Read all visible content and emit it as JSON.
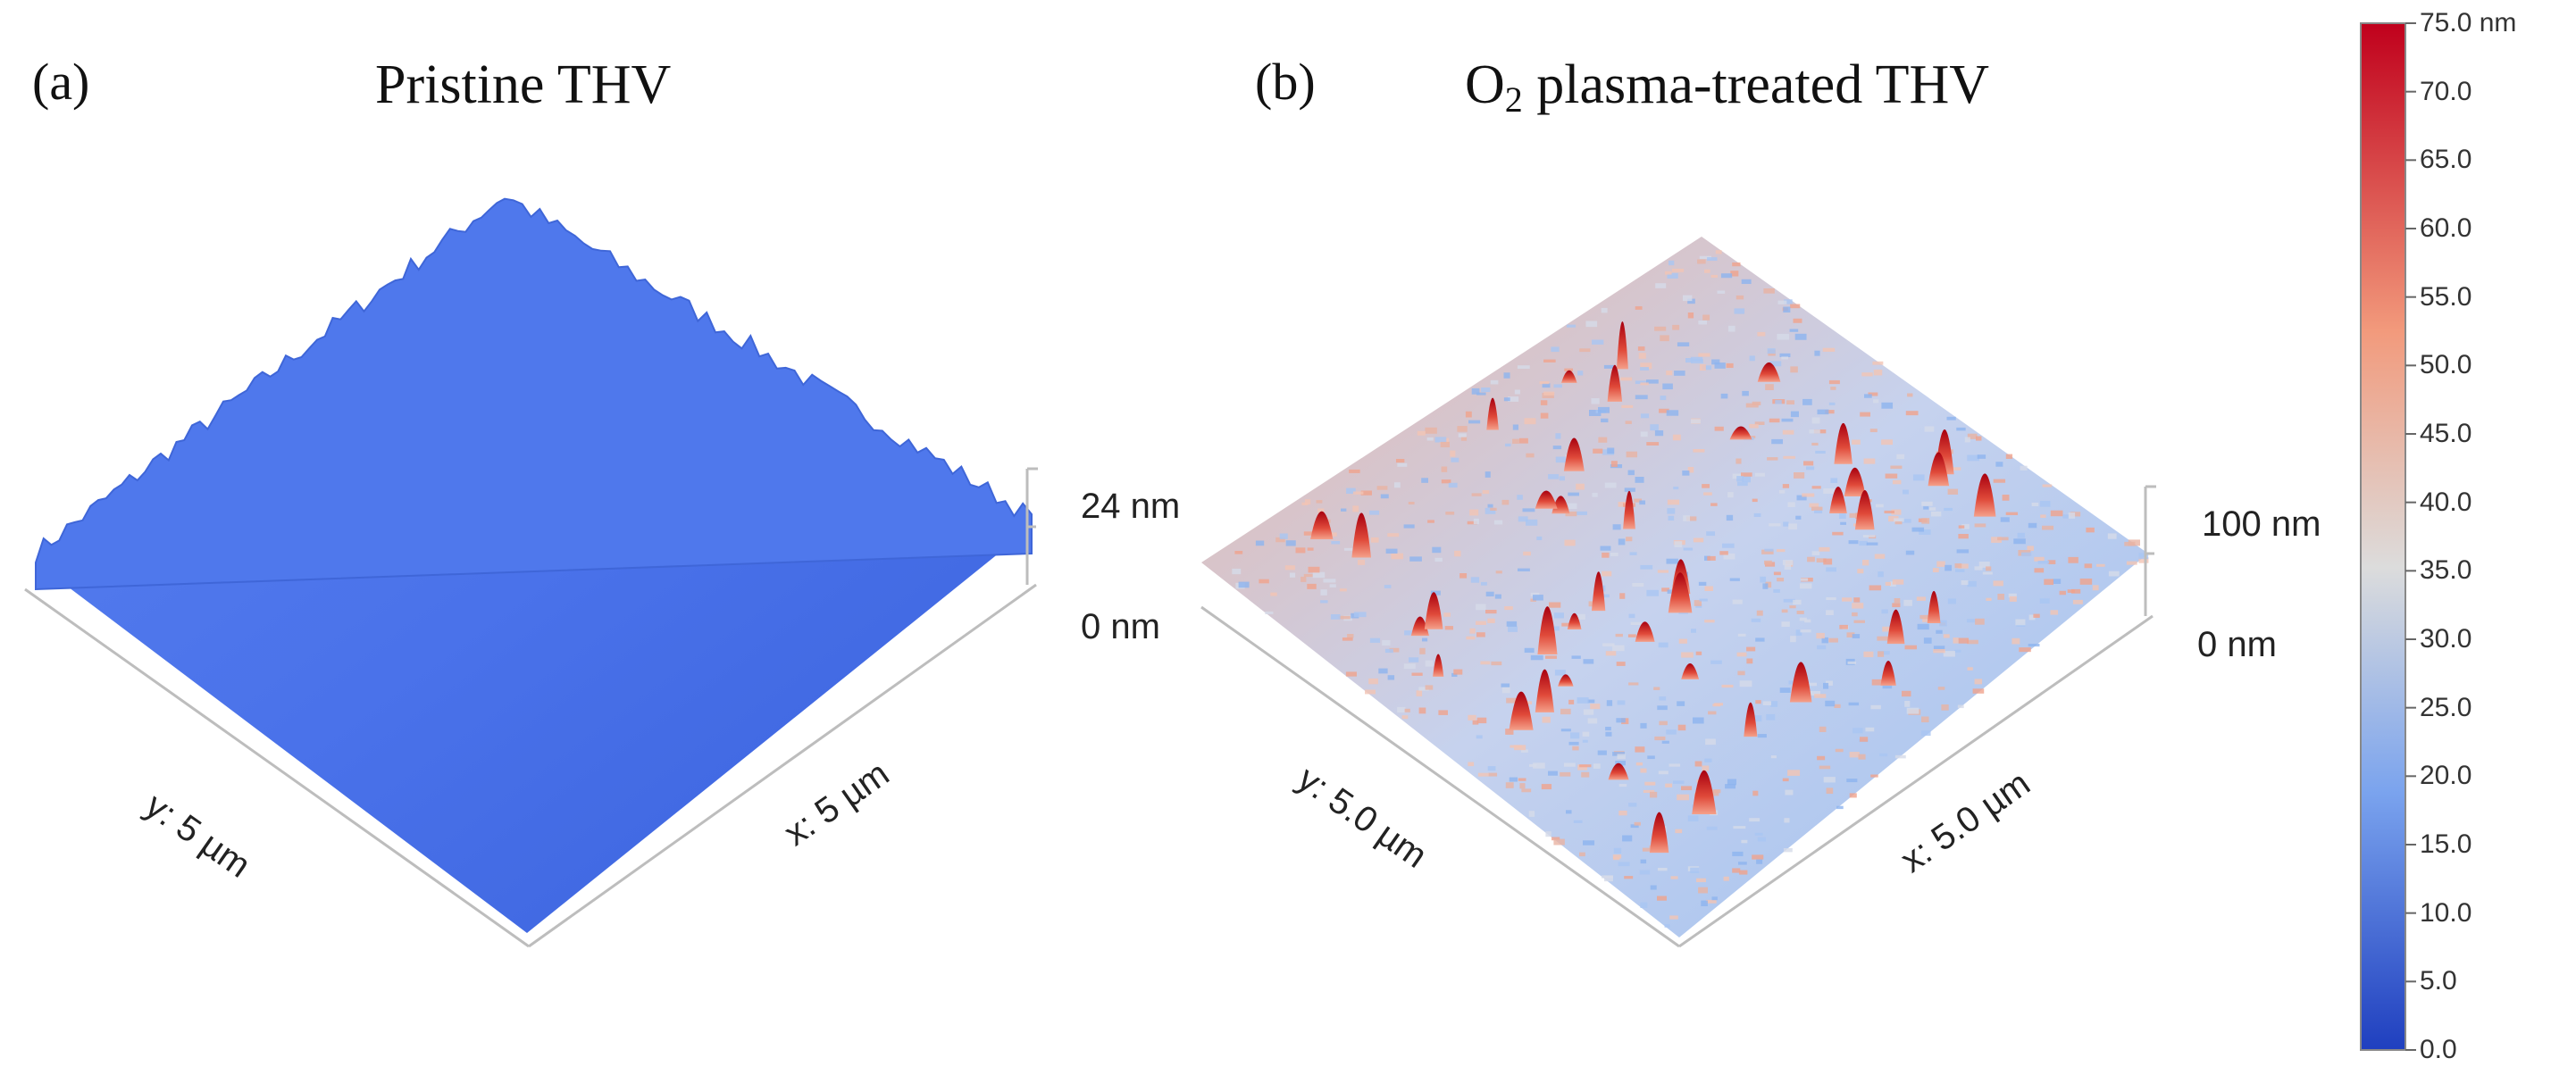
{
  "panel_a": {
    "letter": "(a)",
    "title": "Pristine THV",
    "x_axis": "x: 5 µm",
    "y_axis": "y: 5 µm",
    "z_top": "24 nm",
    "z_bottom": "0 nm"
  },
  "panel_b": {
    "letter": "(b)",
    "title_prefix": "O",
    "title_sub": "2",
    "title_suffix": " plasma-treated THV",
    "x_axis": "x: 5.0 µm",
    "y_axis": "y: 5.0 µm",
    "z_top": "100 nm",
    "z_bottom": "0 nm"
  },
  "colorbar": {
    "ticks": [
      "75.0 nm",
      "70.0",
      "65.0",
      "60.0",
      "55.0",
      "50.0",
      "45.0",
      "40.0",
      "35.0",
      "30.0",
      "25.0",
      "20.0",
      "15.0",
      "10.0",
      "5.0",
      "0.0"
    ],
    "colors": {
      "low": "#2b4fc8",
      "mid": "#d9d9d9",
      "high": "#c4001e"
    }
  },
  "colors": {
    "surface_a": "#4a72ea",
    "surface_b_base": "#c9d3ea",
    "peak_red": "#c4101e",
    "peak_orange": "#ee7a5e"
  }
}
